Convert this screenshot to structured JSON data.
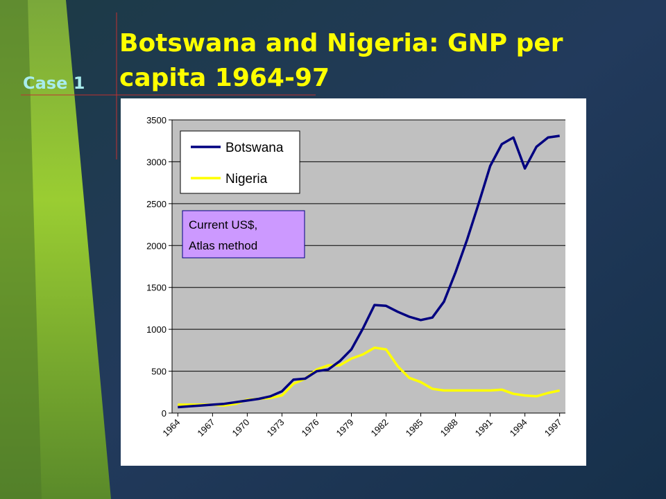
{
  "slide_label": "Case 1",
  "chart_data": {
    "type": "line",
    "title": "Botswana and Nigeria: GNP per capita 1964-97",
    "annotation": [
      "Current US$,",
      "Atlas method"
    ],
    "categories": [
      "1964",
      null,
      null,
      "1967",
      null,
      null,
      "1970",
      null,
      null,
      "1973",
      null,
      null,
      "1976",
      null,
      null,
      "1979",
      null,
      null,
      "1982",
      null,
      null,
      "1985",
      null,
      null,
      "1988",
      null,
      null,
      "1991",
      null,
      null,
      "1994",
      null,
      null,
      "1997"
    ],
    "series": [
      {
        "name": "Botswana",
        "color": "#000080",
        "values": [
          70,
          80,
          90,
          100,
          110,
          130,
          150,
          170,
          200,
          260,
          400,
          410,
          500,
          520,
          620,
          760,
          1010,
          1290,
          1280,
          1210,
          1150,
          1110,
          1140,
          1330,
          1680,
          2070,
          2500,
          2950,
          3210,
          3290,
          2920,
          3180,
          3290,
          3310
        ]
      },
      {
        "name": "Nigeria",
        "color": "#ffff00",
        "values": [
          100,
          100,
          100,
          100,
          90,
          110,
          160,
          170,
          180,
          210,
          350,
          410,
          520,
          570,
          570,
          650,
          700,
          780,
          760,
          560,
          420,
          370,
          290,
          270,
          270,
          270,
          270,
          270,
          280,
          230,
          210,
          200,
          240,
          270
        ]
      }
    ],
    "ylim": [
      0,
      3500
    ],
    "yticks": [
      0,
      500,
      1000,
      1500,
      2000,
      2500,
      3000,
      3500
    ],
    "grid": true,
    "legend": "upper left"
  }
}
